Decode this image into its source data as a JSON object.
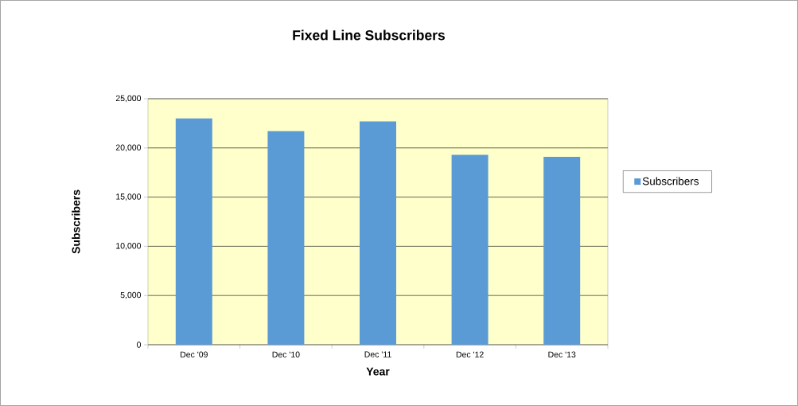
{
  "chart_data": {
    "type": "bar",
    "title": "Fixed Line Subscribers",
    "xlabel": "Year",
    "ylabel": "Subscribers",
    "categories": [
      "Dec '09",
      "Dec '10",
      "Dec '11",
      "Dec '12",
      "Dec '13"
    ],
    "series": [
      {
        "name": "Subscribers",
        "color": "#5b9bd5",
        "values": [
          23000,
          21700,
          22700,
          19300,
          19100
        ]
      }
    ],
    "ylim": [
      0,
      25000
    ],
    "yticks": [
      0,
      {
        "value": 5000,
        "label": "5,000"
      },
      {
        "value": 10000,
        "label": "10,000"
      },
      {
        "value": 15000,
        "label": "15,000"
      },
      {
        "value": 20000,
        "label": "20,000"
      },
      {
        "value": 25000,
        "label": "25,000"
      }
    ],
    "grid": "y",
    "legend": "right"
  }
}
